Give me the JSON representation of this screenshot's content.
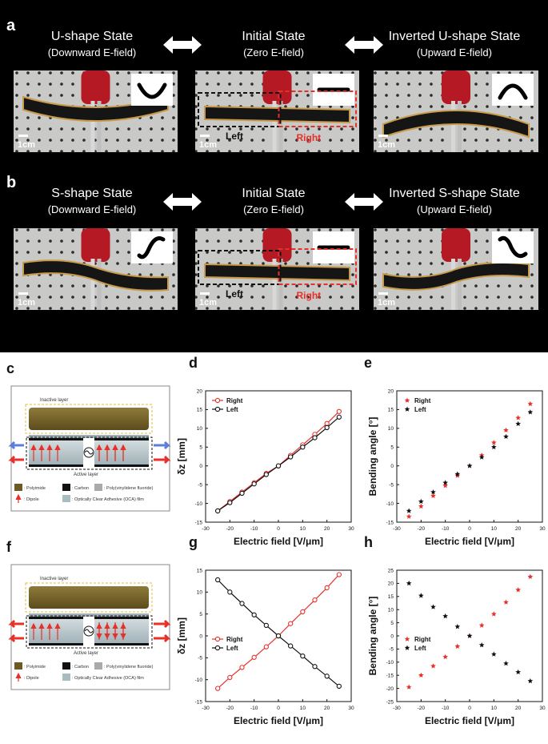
{
  "figure": {
    "panel_a": {
      "letter": "a",
      "states": [
        {
          "title": "U-shape State",
          "subtitle": "(Downward E-field)"
        },
        {
          "title": "Initial State",
          "subtitle": "(Zero E-field)"
        },
        {
          "title": "Inverted U-shape State",
          "subtitle": "(Upward E-field)"
        }
      ],
      "scale": "1cm",
      "left_label": "Left",
      "right_label": "Right"
    },
    "panel_b": {
      "letter": "b",
      "states": [
        {
          "title": "S-shape State",
          "subtitle": "(Downward E-field)"
        },
        {
          "title": "Initial State",
          "subtitle": "(Zero E-field)"
        },
        {
          "title": "Inverted S-shape State",
          "subtitle": "(Upward E-field)"
        }
      ],
      "scale": "1cm",
      "left_label": "Left",
      "right_label": "Right"
    },
    "schematic_c": {
      "letter": "c",
      "inactive_layer": "Inactive layer",
      "active_layer": "Active layer",
      "legend": {
        "polyimide": ": Polyimide",
        "carbon": ": Carbon",
        "pvdf": ": Poly(vinylidene fluoride)",
        "dipole": ": Dipole",
        "oca": ": Optically Clear Adhesive (OCA) film"
      }
    },
    "schematic_f": {
      "letter": "f",
      "inactive_layer": "Inactive layer",
      "active_layer": "Active layer",
      "legend": {
        "polyimide": ": Polyimide",
        "carbon": ": Carbon",
        "pvdf": ": Poly(vinylidene fluoride)",
        "dipole": ": Dipole",
        "oca": ": Optically Clear Adhesive (OCA) film"
      }
    },
    "colors": {
      "right": "#e8302a",
      "left": "#111111",
      "background": "#000000"
    }
  },
  "chart_data": [
    {
      "id": "d",
      "letter": "d",
      "type": "line",
      "xlabel": "Electric field [V/μm]",
      "ylabel": "δz [mm]",
      "xlim": [
        -30,
        30
      ],
      "ylim": [
        -15,
        20
      ],
      "xticks": [
        -30,
        -20,
        -10,
        0,
        10,
        20,
        30
      ],
      "yticks": [
        -15,
        -10,
        -5,
        0,
        5,
        10,
        15,
        20
      ],
      "legend_position": "top-left",
      "x": [
        -25,
        -20,
        -15,
        -10,
        -5,
        0,
        5,
        10,
        15,
        20,
        25
      ],
      "series": [
        {
          "name": "Right",
          "values": [
            -12,
            -9.5,
            -7,
            -4.5,
            -2,
            0,
            2.8,
            5.6,
            8.4,
            11.3,
            14.5
          ]
        },
        {
          "name": "Left",
          "values": [
            -12,
            -9.8,
            -7.3,
            -4.8,
            -2.3,
            0,
            2.4,
            5.0,
            7.5,
            10.2,
            13
          ]
        }
      ]
    },
    {
      "id": "e",
      "letter": "e",
      "type": "scatter",
      "xlabel": "Electric field [V/μm]",
      "ylabel": "Bending angle [°]",
      "xlim": [
        -30,
        30
      ],
      "ylim": [
        -15,
        20
      ],
      "xticks": [
        -30,
        -20,
        -10,
        0,
        10,
        20,
        30
      ],
      "yticks": [
        -15,
        -10,
        -5,
        0,
        5,
        10,
        15,
        20
      ],
      "legend_position": "top-left",
      "x": [
        -25,
        -20,
        -15,
        -10,
        -5,
        0,
        5,
        10,
        15,
        20,
        25
      ],
      "series": [
        {
          "name": "Right",
          "values": [
            -13.5,
            -10.8,
            -8.0,
            -5.3,
            -2.6,
            0,
            2.8,
            6.2,
            9.5,
            12.8,
            16.5
          ]
        },
        {
          "name": "Left",
          "values": [
            -12.0,
            -9.5,
            -7.0,
            -4.5,
            -2.2,
            0,
            2.3,
            5.0,
            7.8,
            11.2,
            14.3
          ]
        }
      ]
    },
    {
      "id": "g",
      "letter": "g",
      "type": "line",
      "xlabel": "Electric field [V/μm]",
      "ylabel": "δz [mm]",
      "xlim": [
        -30,
        30
      ],
      "ylim": [
        -15,
        15
      ],
      "xticks": [
        -30,
        -20,
        -10,
        0,
        10,
        20,
        30
      ],
      "yticks": [
        -15,
        -10,
        -5,
        0,
        5,
        10,
        15
      ],
      "legend_position": "center-left",
      "x": [
        -25,
        -20,
        -15,
        -10,
        -5,
        0,
        5,
        10,
        15,
        20,
        25
      ],
      "series": [
        {
          "name": "Right",
          "values": [
            -12,
            -9.5,
            -7.2,
            -4.9,
            -2.5,
            0,
            2.8,
            5.5,
            8.2,
            11,
            14
          ]
        },
        {
          "name": "Left",
          "values": [
            12.8,
            10,
            7.4,
            4.8,
            2.4,
            0,
            -2.3,
            -4.6,
            -7,
            -9.2,
            -11.5
          ]
        }
      ]
    },
    {
      "id": "h",
      "letter": "h",
      "type": "scatter",
      "xlabel": "Electric field [V/μm]",
      "ylabel": "Bending angle [°]",
      "xlim": [
        -30,
        30
      ],
      "ylim": [
        -25,
        25
      ],
      "xticks": [
        -30,
        -20,
        -10,
        0,
        10,
        20,
        30
      ],
      "yticks": [
        -25,
        -20,
        -15,
        -10,
        -5,
        0,
        5,
        10,
        15,
        20,
        25
      ],
      "legend_position": "center-left",
      "x": [
        -25,
        -20,
        -15,
        -10,
        -5,
        0,
        5,
        10,
        15,
        20,
        25
      ],
      "series": [
        {
          "name": "Right",
          "values": [
            -19.5,
            -15,
            -11.5,
            -8,
            -4,
            0,
            4,
            8.3,
            12.8,
            17.5,
            22.5
          ]
        },
        {
          "name": "Left",
          "values": [
            20,
            15.3,
            11,
            7.5,
            3.5,
            0,
            -3.5,
            -7,
            -10.5,
            -13.8,
            -17.2
          ]
        }
      ]
    }
  ]
}
